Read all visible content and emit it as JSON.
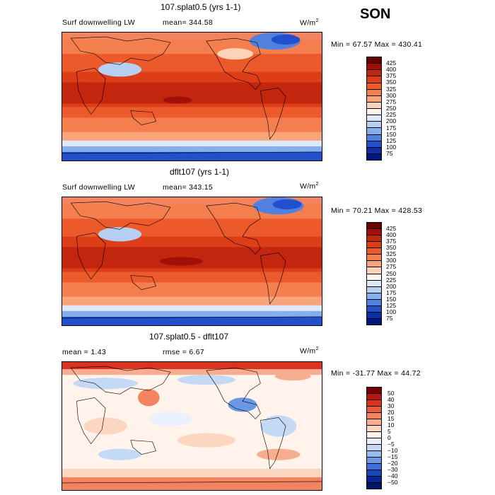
{
  "season": "SON",
  "panels": [
    {
      "title": "107.splat0.5 (yrs 1-1)",
      "variable": "Surf downwelling LW",
      "stat_left": "",
      "stat_mid": "mean= 344.58",
      "units": "W/m",
      "units_sup": "2",
      "minmax": "Min =  67.57 Max = 430.41",
      "colorbar_labels": [
        "425",
        "400",
        "375",
        "350",
        "325",
        "300",
        "275",
        "250",
        "225",
        "200",
        "175",
        "150",
        "125",
        "100",
        "75"
      ],
      "colorbar_colors": [
        "#6b0000",
        "#a01008",
        "#c3260e",
        "#dd3e18",
        "#ec5a2c",
        "#f47e4d",
        "#f9a57c",
        "#fdd2b7",
        "#fff4ea",
        "#dde9fb",
        "#b6d0f4",
        "#85aeec",
        "#5080e0",
        "#2250cc",
        "#0a30a8",
        "#00187c"
      ]
    },
    {
      "title": "dflt107 (yrs 1-1)",
      "variable": "Surf downwelling LW",
      "stat_left": "",
      "stat_mid": "mean= 343.15",
      "units": "W/m",
      "units_sup": "2",
      "minmax": "Min =  70.21 Max = 428.53",
      "colorbar_labels": [
        "425",
        "400",
        "375",
        "350",
        "325",
        "300",
        "275",
        "250",
        "225",
        "200",
        "175",
        "150",
        "125",
        "100",
        "75"
      ],
      "colorbar_colors": [
        "#6b0000",
        "#a01008",
        "#c3260e",
        "#dd3e18",
        "#ec5a2c",
        "#f47e4d",
        "#f9a57c",
        "#fdd2b7",
        "#fff4ea",
        "#dde9fb",
        "#b6d0f4",
        "#85aeec",
        "#5080e0",
        "#2250cc",
        "#0a30a8",
        "#00187c"
      ]
    },
    {
      "title": "107.splat0.5 - dflt107",
      "variable": "",
      "stat_left": "mean =    1.43",
      "stat_mid": "rmse =    6.67",
      "units": "W/m",
      "units_sup": "2",
      "minmax": "Min = -31.77 Max =  44.72",
      "colorbar_labels": [
        "50",
        "40",
        "30",
        "20",
        "15",
        "10",
        "5",
        "0",
        "−5",
        "−10",
        "−15",
        "−20",
        "−30",
        "−40",
        "−50"
      ],
      "colorbar_colors": [
        "#7a0000",
        "#b81410",
        "#d83420",
        "#ec5a3c",
        "#f4845f",
        "#f9ad8e",
        "#fdd6c2",
        "#fff3ec",
        "#e9f1fc",
        "#c4d9f5",
        "#96bbee",
        "#6a98e4",
        "#3e6fd8",
        "#1a44bc",
        "#082890",
        "#001468"
      ]
    }
  ]
}
